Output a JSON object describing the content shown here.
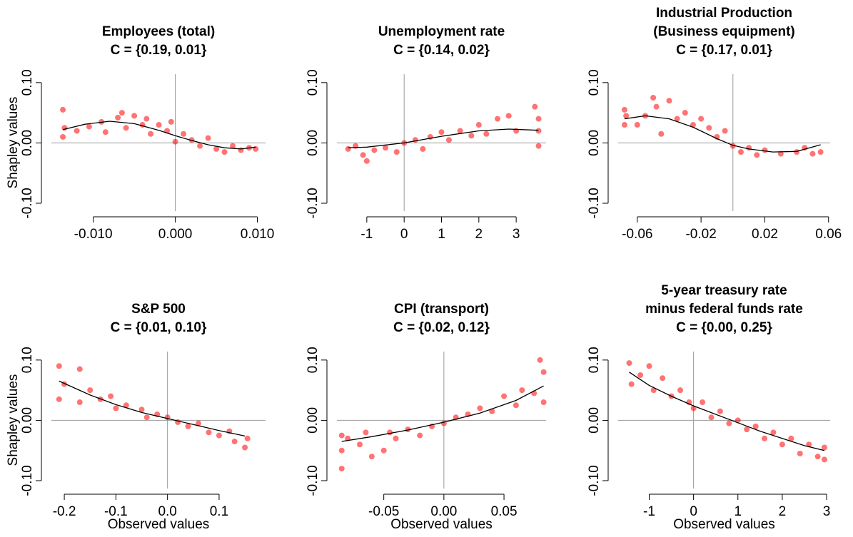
{
  "chart_data": [
    {
      "type": "scatter",
      "title": [
        "Employees (total)",
        "C = {0.19, 0.01}"
      ],
      "ylabel": "Shapley values",
      "xlim": [
        -0.0151,
        0.011
      ],
      "ylim": [
        -0.113,
        0.114
      ],
      "xticks": [
        {
          "value": -0.01,
          "label": "-0.010"
        },
        {
          "value": 0,
          "label": "0.000"
        },
        {
          "value": 0.01,
          "label": "0.010"
        }
      ],
      "yticks": [
        {
          "value": -0.1,
          "label": "-0.10"
        },
        {
          "value": 0,
          "label": "0.00"
        },
        {
          "value": 0.1,
          "label": "0.10"
        }
      ],
      "points": {
        "color": "#ff0000",
        "x": [
          -0.0137,
          -0.0137,
          -0.0135,
          -0.012,
          -0.0105,
          -0.009,
          -0.0085,
          -0.007,
          -0.0065,
          -0.006,
          -0.005,
          -0.004,
          -0.0035,
          -0.003,
          -0.002,
          -0.001,
          -0.0005,
          0,
          0.001,
          0.002,
          0.003,
          0.004,
          0.005,
          0.006,
          0.007,
          0.008,
          0.009,
          0.0098
        ],
        "values": [
          0.055,
          0.01,
          0.025,
          0.02,
          0.027,
          0.035,
          0.018,
          0.042,
          0.05,
          0.025,
          0.045,
          0.03,
          0.04,
          0.015,
          0.03,
          0.02,
          0.035,
          0.002,
          0.015,
          0.005,
          -0.005,
          0.008,
          -0.01,
          -0.015,
          -0.005,
          -0.012,
          -0.008,
          -0.01
        ]
      },
      "fit": {
        "color": "#000000",
        "x": [
          -0.0137,
          -0.011,
          -0.008,
          -0.005,
          -0.002,
          0,
          0.002,
          0.004,
          0.006,
          0.008,
          0.0098
        ],
        "values": [
          0.022,
          0.031,
          0.036,
          0.032,
          0.021,
          0.012,
          0.004,
          -0.003,
          -0.008,
          -0.01,
          -0.007
        ]
      }
    },
    {
      "type": "scatter",
      "title": [
        "Unemployment rate",
        "C = {0.14, 0.02}"
      ],
      "xlim": [
        -1.8,
        3.8
      ],
      "ylim": [
        -0.113,
        0.114
      ],
      "xticks": [
        -1,
        0,
        1,
        2,
        3
      ],
      "yticks": [
        {
          "value": -0.1,
          "label": "-0.10"
        },
        {
          "value": 0,
          "label": "0.00"
        },
        {
          "value": 0.1,
          "label": "0.10"
        }
      ],
      "points": {
        "color": "#ff0000",
        "x": [
          -1.5,
          -1.3,
          -1.1,
          -1,
          -0.8,
          -0.5,
          -0.2,
          0,
          0.3,
          0.5,
          0.7,
          1,
          1.2,
          1.5,
          1.8,
          2,
          2.2,
          2.5,
          2.8,
          3,
          3.5,
          3.6,
          3.6,
          3.6
        ],
        "values": [
          -0.01,
          -0.005,
          -0.02,
          -0.03,
          -0.012,
          -0.008,
          -0.015,
          0,
          0.005,
          -0.01,
          0.01,
          0.018,
          0.005,
          0.02,
          0.012,
          0.03,
          0.015,
          0.04,
          0.045,
          0.02,
          0.06,
          0.04,
          -0.005,
          0.02
        ]
      },
      "fit": {
        "color": "#000000",
        "x": [
          -1.5,
          -1,
          0,
          1,
          2,
          2.8,
          3.6
        ],
        "values": [
          -0.008,
          -0.007,
          0,
          0.011,
          0.02,
          0.023,
          0.021
        ]
      }
    },
    {
      "type": "scatter",
      "title": [
        "Industrial Production",
        "(Business equipment)",
        "C = {0.17, 0.01}"
      ],
      "xlim": [
        -0.072,
        0.061
      ],
      "ylim": [
        -0.113,
        0.114
      ],
      "xticks": [
        -0.06,
        -0.02,
        0.02,
        0.06
      ],
      "yticks": [
        {
          "value": -0.1,
          "label": "-0.10"
        },
        {
          "value": 0,
          "label": "0.00"
        },
        {
          "value": 0.1,
          "label": "0.10"
        }
      ],
      "points": {
        "color": "#ff0000",
        "x": [
          -0.068,
          -0.068,
          -0.067,
          -0.06,
          -0.055,
          -0.05,
          -0.048,
          -0.045,
          -0.04,
          -0.035,
          -0.03,
          -0.025,
          -0.02,
          -0.015,
          -0.01,
          -0.005,
          0,
          0.005,
          0.01,
          0.015,
          0.02,
          0.03,
          0.04,
          0.045,
          0.05,
          0.055
        ],
        "values": [
          0.055,
          0.03,
          0.045,
          0.03,
          0.045,
          0.075,
          0.06,
          0.015,
          0.07,
          0.04,
          0.05,
          0.03,
          0.04,
          0.025,
          0.01,
          0.02,
          -0.005,
          -0.015,
          -0.008,
          -0.02,
          -0.012,
          -0.018,
          -0.015,
          -0.008,
          -0.018,
          -0.015
        ]
      },
      "fit": {
        "color": "#000000",
        "x": [
          -0.068,
          -0.055,
          -0.04,
          -0.025,
          -0.01,
          0,
          0.01,
          0.025,
          0.04,
          0.055
        ],
        "values": [
          0.04,
          0.045,
          0.04,
          0.026,
          0.007,
          -0.004,
          -0.01,
          -0.015,
          -0.014,
          -0.003
        ]
      }
    },
    {
      "type": "scatter",
      "title": [
        "S&P 500",
        "C = {0.01, 0.10}"
      ],
      "xlabel": "Observed values",
      "ylabel": "Shapley values",
      "xlim": [
        -0.225,
        0.19
      ],
      "ylim": [
        -0.113,
        0.114
      ],
      "xticks": [
        -0.2,
        -0.1,
        {
          "value": 0,
          "label": "0.0"
        },
        0.1
      ],
      "yticks": [
        {
          "value": -0.1,
          "label": "-0.10"
        },
        {
          "value": 0,
          "label": "0.00"
        },
        {
          "value": 0.1,
          "label": "0.10"
        }
      ],
      "points": {
        "color": "#ff0000",
        "x": [
          -0.21,
          -0.21,
          -0.2,
          -0.17,
          -0.17,
          -0.15,
          -0.13,
          -0.11,
          -0.1,
          -0.08,
          -0.05,
          -0.04,
          -0.02,
          0,
          0.02,
          0.04,
          0.06,
          0.08,
          0.1,
          0.12,
          0.13,
          0.15,
          0.155
        ],
        "values": [
          0.09,
          0.035,
          0.06,
          0.085,
          0.03,
          0.05,
          0.035,
          0.04,
          0.02,
          0.025,
          0.018,
          0.005,
          0.01,
          0.005,
          -0.003,
          -0.01,
          -0.005,
          -0.02,
          -0.025,
          -0.018,
          -0.035,
          -0.045,
          -0.03
        ]
      },
      "fit": {
        "color": "#000000",
        "x": [
          -0.21,
          -0.15,
          -0.1,
          -0.05,
          0,
          0.05,
          0.1,
          0.15
        ],
        "values": [
          0.065,
          0.042,
          0.026,
          0.013,
          0.003,
          -0.007,
          -0.017,
          -0.026
        ]
      }
    },
    {
      "type": "scatter",
      "title": [
        "CPI (transport)",
        "C = {0.02, 0.12}"
      ],
      "xlabel": "Observed values",
      "xlim": [
        -0.089,
        0.085
      ],
      "ylim": [
        -0.113,
        0.114
      ],
      "xticks": [
        -0.05,
        {
          "value": 0,
          "label": "0.00"
        },
        0.05
      ],
      "yticks": [
        {
          "value": -0.1,
          "label": "-0.10"
        },
        {
          "value": 0,
          "label": "0.00"
        },
        {
          "value": 0.1,
          "label": "0.10"
        }
      ],
      "points": {
        "color": "#ff0000",
        "x": [
          -0.085,
          -0.085,
          -0.085,
          -0.08,
          -0.07,
          -0.065,
          -0.06,
          -0.05,
          -0.045,
          -0.04,
          -0.03,
          -0.02,
          -0.01,
          0,
          0.01,
          0.02,
          0.03,
          0.04,
          0.05,
          0.06,
          0.065,
          0.075,
          0.08,
          0.083,
          0.083
        ],
        "values": [
          -0.08,
          -0.05,
          -0.025,
          -0.03,
          -0.04,
          -0.02,
          -0.06,
          -0.05,
          -0.02,
          -0.03,
          -0.015,
          -0.025,
          -0.01,
          -0.005,
          0.005,
          0.01,
          0.02,
          0.015,
          0.04,
          0.025,
          0.05,
          0.045,
          0.1,
          0.08,
          0.03
        ]
      },
      "fit": {
        "color": "#000000",
        "x": [
          -0.085,
          -0.06,
          -0.03,
          0,
          0.03,
          0.06,
          0.083
        ],
        "values": [
          -0.035,
          -0.027,
          -0.016,
          -0.003,
          0.012,
          0.033,
          0.057
        ]
      }
    },
    {
      "type": "scatter",
      "title": [
        "5-year treasury rate",
        "minus federal funds rate",
        "C = {0.00, 0.25}"
      ],
      "xlabel": "Observed values",
      "xlim": [
        -1.7,
        3.08
      ],
      "ylim": [
        -0.113,
        0.114
      ],
      "xticks": [
        -1,
        0,
        1,
        2,
        3
      ],
      "yticks": [
        {
          "value": -0.1,
          "label": "-0.10"
        },
        {
          "value": 0,
          "label": "0.00"
        },
        {
          "value": 0.1,
          "label": "0.10"
        }
      ],
      "points": {
        "color": "#ff0000",
        "x": [
          -1.45,
          -1.4,
          -1.2,
          -1,
          -0.9,
          -0.7,
          -0.5,
          -0.3,
          -0.1,
          0,
          0.2,
          0.4,
          0.6,
          0.8,
          1,
          1.2,
          1.4,
          1.6,
          1.8,
          2,
          2.2,
          2.4,
          2.6,
          2.8,
          2.95,
          2.95
        ],
        "values": [
          0.095,
          0.06,
          0.075,
          0.09,
          0.05,
          0.07,
          0.04,
          0.05,
          0.03,
          0.02,
          0.03,
          0.005,
          0.015,
          -0.005,
          0,
          -0.015,
          -0.01,
          -0.03,
          -0.02,
          -0.04,
          -0.03,
          -0.055,
          -0.04,
          -0.06,
          -0.045,
          -0.065
        ]
      },
      "fit": {
        "color": "#000000",
        "x": [
          -1.45,
          -1,
          -0.5,
          0,
          0.5,
          1,
          1.5,
          2,
          2.5,
          2.95
        ],
        "values": [
          0.08,
          0.058,
          0.04,
          0.024,
          0.01,
          -0.004,
          -0.018,
          -0.03,
          -0.042,
          -0.05
        ]
      }
    }
  ]
}
